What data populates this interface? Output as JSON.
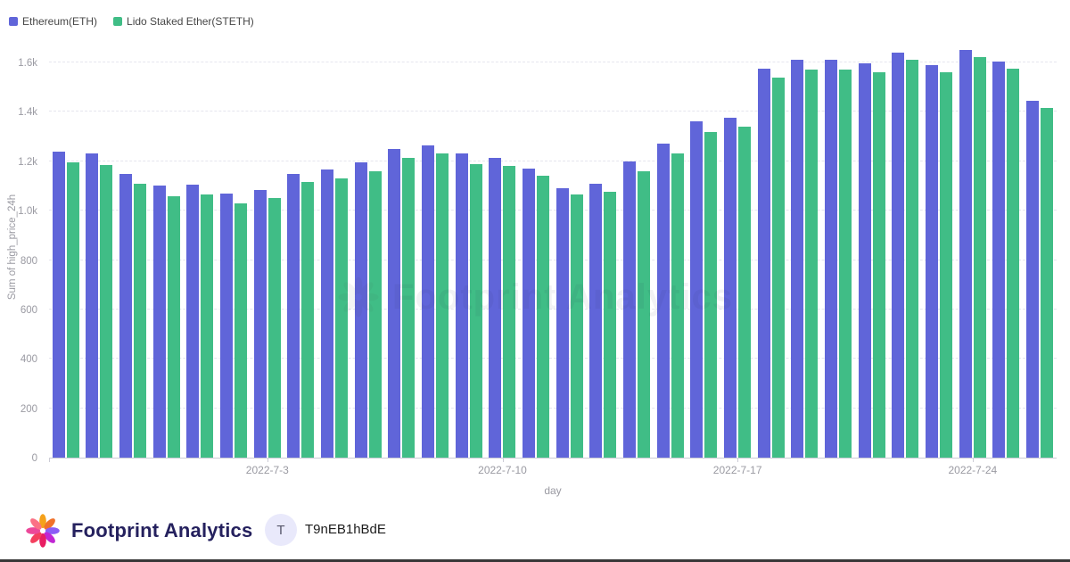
{
  "legend": {
    "items": [
      {
        "label": "Ethereum(ETH)"
      },
      {
        "label": "Lido Staked Ether(STETH)"
      }
    ]
  },
  "chart_data": {
    "type": "bar",
    "title": "",
    "xlabel": "day",
    "ylabel": "Sum of high_price_24h",
    "ylim": [
      0,
      1600
    ],
    "grid": "dashed-horizontal",
    "legend_position": "top-left",
    "y_ticks": [
      "0",
      "200",
      "400",
      "600",
      "800",
      "1.0k",
      "1.2k",
      "1.4k",
      "1.6k"
    ],
    "x_tick_labels": [
      "2022-7-3",
      "2022-7-10",
      "2022-7-17",
      "2022-7-24"
    ],
    "x_tick_indices": [
      6,
      13,
      20,
      27
    ],
    "categories": [
      "2022-6-27",
      "2022-6-28",
      "2022-6-29",
      "2022-6-30",
      "2022-7-1",
      "2022-7-2",
      "2022-7-3",
      "2022-7-4",
      "2022-7-5",
      "2022-7-6",
      "2022-7-7",
      "2022-7-8",
      "2022-7-9",
      "2022-7-10",
      "2022-7-11",
      "2022-7-12",
      "2022-7-13",
      "2022-7-14",
      "2022-7-15",
      "2022-7-16",
      "2022-7-17",
      "2022-7-18",
      "2022-7-19",
      "2022-7-20",
      "2022-7-21",
      "2022-7-22",
      "2022-7-23",
      "2022-7-24",
      "2022-7-25",
      "2022-7-26"
    ],
    "series": [
      {
        "name": "Ethereum(ETH)",
        "color": "#6065d9",
        "values": [
          1240,
          1230,
          1150,
          1100,
          1105,
          1070,
          1085,
          1150,
          1165,
          1195,
          1250,
          1265,
          1230,
          1215,
          1170,
          1090,
          1110,
          1200,
          1270,
          1360,
          1375,
          1575,
          1610,
          1610,
          1595,
          1640,
          1590,
          1650,
          1605,
          1445
        ]
      },
      {
        "name": "Lido Staked Ether(STETH)",
        "color": "#40bd86",
        "values": [
          1195,
          1185,
          1110,
          1060,
          1065,
          1030,
          1050,
          1115,
          1130,
          1160,
          1215,
          1230,
          1190,
          1180,
          1140,
          1065,
          1075,
          1160,
          1230,
          1320,
          1340,
          1540,
          1570,
          1570,
          1560,
          1610,
          1560,
          1620,
          1575,
          1415
        ]
      }
    ]
  },
  "watermark": {
    "text": "Footprint Analytics"
  },
  "footer": {
    "brand": "Footprint Analytics",
    "avatar_letter": "T",
    "user_name": "T9nEB1hBdE"
  }
}
